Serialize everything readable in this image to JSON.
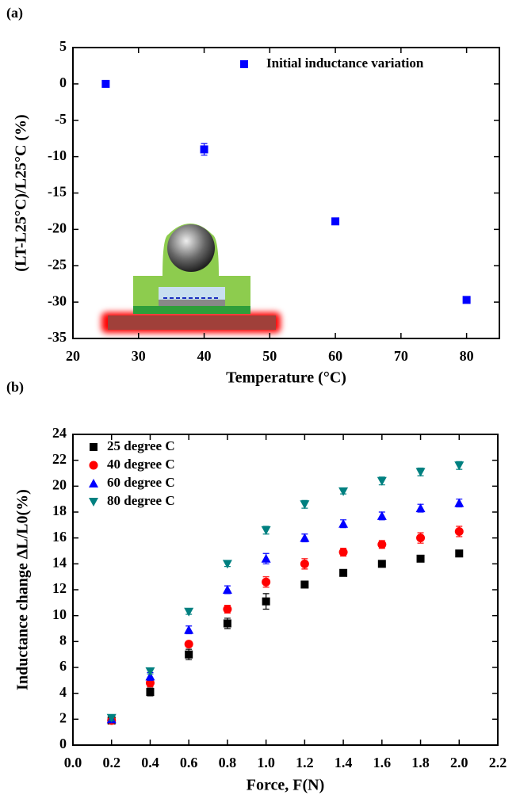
{
  "chart_data": [
    {
      "type": "scatter",
      "label": "(a)",
      "xlabel": "Temperature (°C)",
      "ylabel": "(LT-L25°C)/L25°C (%)",
      "xlim": [
        20,
        85
      ],
      "xticks": [
        20,
        30,
        40,
        50,
        60,
        70,
        80
      ],
      "ylim": [
        -35,
        5
      ],
      "yticks": [
        -35,
        -30,
        -25,
        -20,
        -15,
        -10,
        -5,
        0,
        5
      ],
      "legend": "top-right",
      "series": [
        {
          "name": "Initial inductance variation",
          "color": "#0000ff",
          "marker": "square",
          "x": [
            25,
            40,
            60,
            80
          ],
          "values": [
            0,
            -9,
            -18.9,
            -29.7
          ],
          "errors": [
            0.2,
            0.8,
            0.3,
            0.3
          ]
        }
      ]
    },
    {
      "type": "scatter",
      "label": "(b)",
      "xlabel": "Force, F(N)",
      "ylabel": "Inductance change ΔL/L0(%)",
      "xlim": [
        0,
        2.2
      ],
      "xticks": [
        {
          "value": 0,
          "label": "0.0"
        },
        0.2,
        0.4,
        0.6,
        0.8,
        {
          "value": 1,
          "label": "1.0"
        },
        1.2,
        1.4,
        1.6,
        1.8,
        {
          "value": 2,
          "label": "2.0"
        },
        2.2
      ],
      "ylim": [
        0,
        24
      ],
      "yticks": [
        0,
        2,
        4,
        6,
        8,
        10,
        12,
        14,
        16,
        18,
        20,
        22,
        24
      ],
      "legend": "top-left",
      "series": [
        {
          "name": "25 degree C",
          "color": "#000000",
          "marker": "square",
          "x": [
            0.2,
            0.4,
            0.6,
            0.8,
            1.0,
            1.2,
            1.4,
            1.6,
            1.8,
            2.0
          ],
          "values": [
            1.9,
            4.1,
            7.0,
            9.4,
            11.1,
            12.4,
            13.3,
            14.0,
            14.4,
            14.8
          ],
          "errors": [
            0.2,
            0.3,
            0.4,
            0.4,
            0.6,
            0.2,
            0.2,
            0.1,
            0.1,
            0.1
          ]
        },
        {
          "name": "40 degree C",
          "color": "#ff0000",
          "marker": "circle",
          "x": [
            0.2,
            0.4,
            0.6,
            0.8,
            1.0,
            1.2,
            1.4,
            1.6,
            1.8,
            2.0
          ],
          "values": [
            1.9,
            4.8,
            7.8,
            10.5,
            12.6,
            14.0,
            14.9,
            15.5,
            16.0,
            16.5
          ],
          "errors": [
            0.2,
            0.3,
            0.2,
            0.3,
            0.4,
            0.4,
            0.3,
            0.3,
            0.4,
            0.4
          ]
        },
        {
          "name": "60 degree C",
          "color": "#0000ff",
          "marker": "triangle",
          "x": [
            0.2,
            0.4,
            0.6,
            0.8,
            1.0,
            1.2,
            1.4,
            1.6,
            1.8,
            2.0
          ],
          "values": [
            2.0,
            5.3,
            8.9,
            12.0,
            14.4,
            16.0,
            17.1,
            17.7,
            18.3,
            18.7
          ],
          "errors": [
            0.2,
            0.3,
            0.3,
            0.3,
            0.4,
            0.3,
            0.3,
            0.3,
            0.3,
            0.3
          ]
        },
        {
          "name": "80 degree C",
          "color": "#008080",
          "marker": "triangle-down",
          "x": [
            0.2,
            0.4,
            0.6,
            0.8,
            1.0,
            1.2,
            1.4,
            1.6,
            1.8,
            2.0
          ],
          "values": [
            2.1,
            5.7,
            10.3,
            14.0,
            16.6,
            18.6,
            19.6,
            20.4,
            21.1,
            21.6
          ],
          "errors": [
            0.2,
            0.2,
            0.2,
            0.2,
            0.3,
            0.3,
            0.2,
            0.3,
            0.3,
            0.3
          ]
        }
      ]
    }
  ]
}
